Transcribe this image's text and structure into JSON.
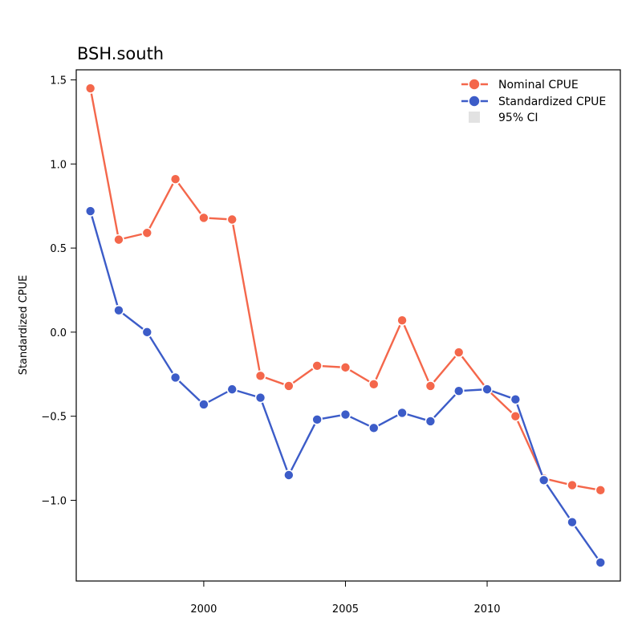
{
  "chart_data": {
    "type": "line",
    "title": "BSH.south",
    "xlabel": "",
    "ylabel": "Standardized CPUE",
    "xlim": [
      1995.5,
      2014.7
    ],
    "ylim": [
      -1.48,
      1.56
    ],
    "xticks": [
      2000,
      2005,
      2010
    ],
    "yticks": [
      1.5,
      1.0,
      0.5,
      0.0,
      -0.5,
      -1.0
    ],
    "ytick_labels": [
      "1.5",
      "1.0",
      "0.5",
      "0.0",
      "−0.5",
      "−1.0"
    ],
    "grid": false,
    "legend_position": "top-right",
    "x": [
      1996,
      1997,
      1998,
      1999,
      2000,
      2001,
      2002,
      2003,
      2004,
      2005,
      2006,
      2007,
      2008,
      2009,
      2010,
      2011,
      2012,
      2013,
      2014
    ],
    "series": [
      {
        "name": "Nominal CPUE",
        "color": "#f4674b",
        "values": [
          1.45,
          0.55,
          0.59,
          0.91,
          0.68,
          0.67,
          -0.26,
          -0.32,
          -0.2,
          -0.21,
          -0.31,
          0.07,
          -0.32,
          -0.12,
          -0.34,
          -0.5,
          -0.87,
          -0.91,
          -0.94
        ]
      },
      {
        "name": "Standardized CPUE",
        "color": "#3c5cc8",
        "values": [
          0.72,
          0.13,
          0.0,
          -0.27,
          -0.43,
          -0.34,
          -0.39,
          -0.85,
          -0.52,
          -0.49,
          -0.57,
          -0.48,
          -0.53,
          -0.35,
          -0.34,
          -0.4,
          -0.88,
          -1.13,
          -1.37
        ]
      }
    ],
    "legend": [
      {
        "label": "Nominal CPUE",
        "color": "#f4674b"
      },
      {
        "label": "Standardized CPUE",
        "color": "#3c5cc8"
      },
      {
        "label": "95% CI",
        "color": "#e2e2e2"
      }
    ]
  }
}
